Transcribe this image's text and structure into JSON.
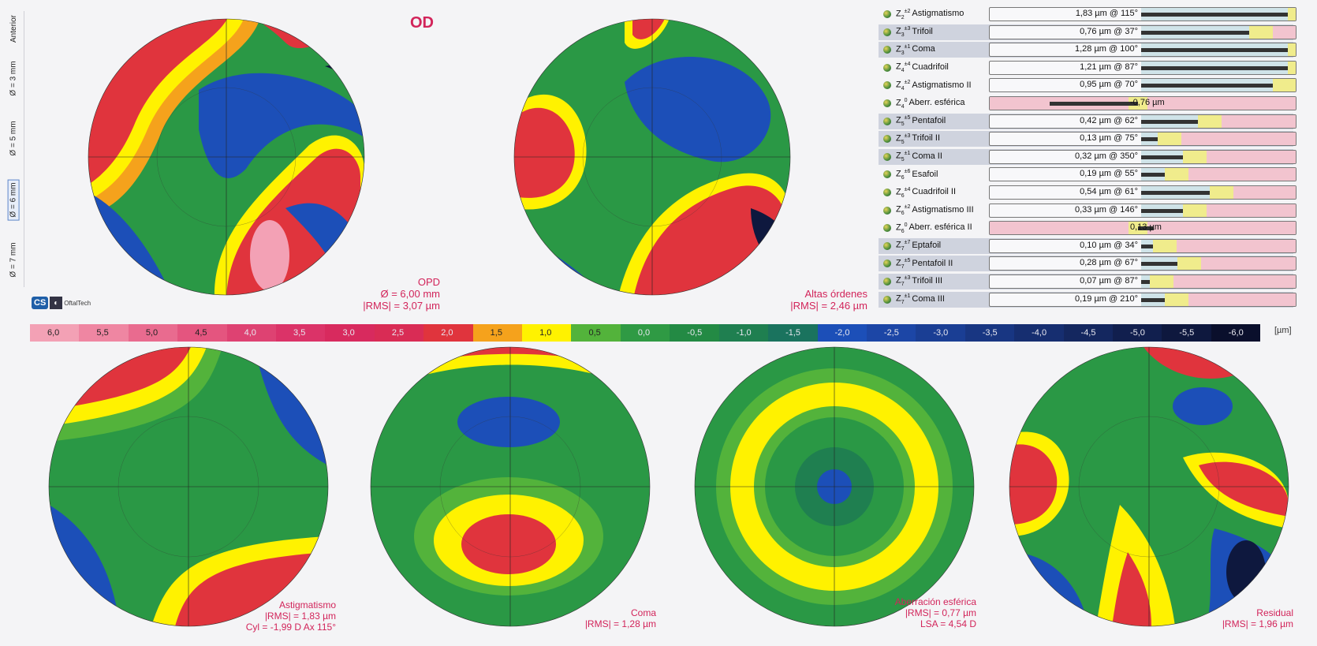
{
  "sidebar": {
    "items": [
      "Anterior",
      "Ø = 3 mm",
      "Ø = 5 mm",
      "Ø = 6 mm",
      "Ø = 7 mm"
    ],
    "selected": 3
  },
  "header": {
    "eye": "OD"
  },
  "top_maps": {
    "opd": {
      "title": "OPD",
      "diameter": "Ø = 6,00 mm",
      "rms": "|RMS| = 3,07 µm"
    },
    "high_orders": {
      "title": "Altas órdenes",
      "rms": "|RMS| = 2,46 µm"
    }
  },
  "logo": {
    "text": "OftalTech",
    "mark": "CS"
  },
  "scale": {
    "unit": "[µm]",
    "labels": [
      "6,0",
      "5,5",
      "5,0",
      "4,5",
      "4,0",
      "3,5",
      "3,0",
      "2,5",
      "2,0",
      "1,5",
      "1,0",
      "0,5",
      "0,0",
      "-0,5",
      "-1,0",
      "-1,5",
      "-2,0",
      "-2,5",
      "-3,0",
      "-3,5",
      "-4,0",
      "-4,5",
      "-5,0",
      "-5,5",
      "-6,0"
    ],
    "colors": [
      "#f3a1b5",
      "#ef86a2",
      "#e96b8f",
      "#e4557f",
      "#de4272",
      "#db3368",
      "#d82a5e",
      "#d92c55",
      "#e0343d",
      "#f5a21c",
      "#fff200",
      "#53b33b",
      "#2f9a44",
      "#238a44",
      "#1f7f50",
      "#1a735e",
      "#1c4fb8",
      "#1c46a6",
      "#1a3e94",
      "#183682",
      "#162e70",
      "#14275f",
      "#111f4e",
      "#0e183e",
      "#0a0f2c"
    ]
  },
  "zernike": [
    {
      "sym": "Z",
      "sub": "2",
      "sup": "±2",
      "name": "Astigmatismo",
      "value": "1,83 µm @ 115°",
      "bar": 0.98,
      "shade": false
    },
    {
      "sym": "Z",
      "sub": "3",
      "sup": "±3",
      "name": "Trifoil",
      "value": "0,76 µm @ 37°",
      "bar": 0.72,
      "shade": true
    },
    {
      "sym": "Z",
      "sub": "3",
      "sup": "±1",
      "name": "Coma",
      "value": "1,28 µm @ 100°",
      "bar": 0.98,
      "shade": true
    },
    {
      "sym": "Z",
      "sub": "4",
      "sup": "±4",
      "name": "Cuadrifoil",
      "value": "1,21 µm @ 87°",
      "bar": 0.98,
      "shade": false
    },
    {
      "sym": "Z",
      "sub": "4",
      "sup": "±2",
      "name": "Astigmatismo II",
      "value": "0,95 µm @ 70°",
      "bar": 0.88,
      "shade": false
    },
    {
      "sym": "Z",
      "sub": "4",
      "sup": "0",
      "name": "Aberr. esférica",
      "value": "-0,76 µm",
      "bar": -0.62,
      "shade": false,
      "signed": true
    },
    {
      "sym": "Z",
      "sub": "5",
      "sup": "±5",
      "name": "Pentafoil",
      "value": "0,42 µm @ 62°",
      "bar": 0.38,
      "shade": true
    },
    {
      "sym": "Z",
      "sub": "5",
      "sup": "±3",
      "name": "Trifoil II",
      "value": "0,13 µm @ 75°",
      "bar": 0.11,
      "shade": true
    },
    {
      "sym": "Z",
      "sub": "5",
      "sup": "±1",
      "name": "Coma II",
      "value": "0,32 µm @ 350°",
      "bar": 0.28,
      "shade": true
    },
    {
      "sym": "Z",
      "sub": "6",
      "sup": "±6",
      "name": "Esafoil",
      "value": "0,19 µm @ 55°",
      "bar": 0.16,
      "shade": false
    },
    {
      "sym": "Z",
      "sub": "6",
      "sup": "±4",
      "name": "Cuadrifoil II",
      "value": "0,54 µm @ 61°",
      "bar": 0.46,
      "shade": false
    },
    {
      "sym": "Z",
      "sub": "6",
      "sup": "±2",
      "name": "Astigmatismo III",
      "value": "0,33 µm @ 146°",
      "bar": 0.28,
      "shade": false
    },
    {
      "sym": "Z",
      "sub": "6",
      "sup": "0",
      "name": "Aberr. esférica II",
      "value": "0,13 µm",
      "bar": 0.11,
      "shade": false,
      "signed": true
    },
    {
      "sym": "Z",
      "sub": "7",
      "sup": "±7",
      "name": "Eptafoil",
      "value": "0,10 µm @ 34°",
      "bar": 0.08,
      "shade": true
    },
    {
      "sym": "Z",
      "sub": "7",
      "sup": "±5",
      "name": "Pentafoil II",
      "value": "0,28 µm @ 67°",
      "bar": 0.24,
      "shade": true
    },
    {
      "sym": "Z",
      "sub": "7",
      "sup": "±3",
      "name": "Trifoil III",
      "value": "0,07 µm @ 87°",
      "bar": 0.06,
      "shade": true
    },
    {
      "sym": "Z",
      "sub": "7",
      "sup": "±1",
      "name": "Coma III",
      "value": "0,19 µm @ 210°",
      "bar": 0.16,
      "shade": true
    }
  ],
  "bottom_maps": {
    "astig": {
      "title": "Astigmatismo",
      "rms": "|RMS| = 1,83 µm",
      "extra": "Cyl = -1,99 D Ax 115°"
    },
    "coma": {
      "title": "Coma",
      "rms": "|RMS| = 1,28 µm"
    },
    "spherical": {
      "title": "Aberración esférica",
      "rms": "|RMS| = 0,77 µm",
      "extra": "LSA = 4,54 D"
    },
    "residual": {
      "title": "Residual",
      "rms": "|RMS| = 1,96 µm"
    }
  }
}
